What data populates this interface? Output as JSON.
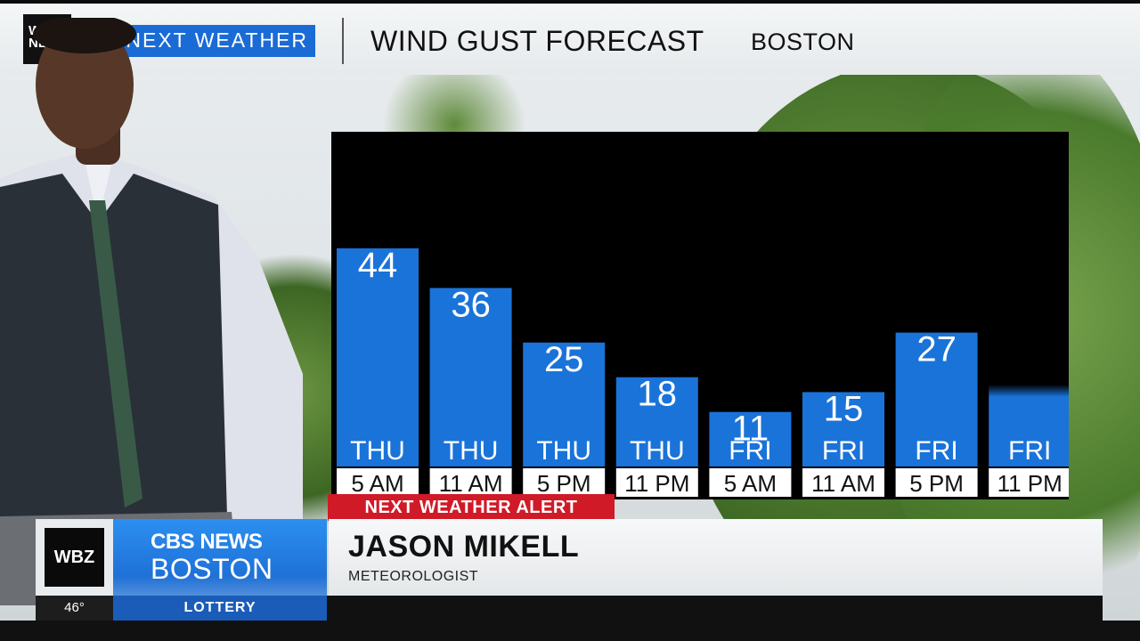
{
  "header": {
    "logo_text": "WBZ NEXT",
    "brand_text": "NEXT WEATHER",
    "title": "WIND GUST FORECAST",
    "city": "BOSTON"
  },
  "chart_data": {
    "type": "bar",
    "title": "WIND GUST FORECAST",
    "categories": [
      {
        "day": "THU",
        "time": "5 AM"
      },
      {
        "day": "THU",
        "time": "11 AM"
      },
      {
        "day": "THU",
        "time": "5 PM"
      },
      {
        "day": "THU",
        "time": "11 PM"
      },
      {
        "day": "FRI",
        "time": "5 AM"
      },
      {
        "day": "FRI",
        "time": "11 AM"
      },
      {
        "day": "FRI",
        "time": "5 PM"
      },
      {
        "day": "FRI",
        "time": "11 PM"
      }
    ],
    "values": [
      44,
      36,
      25,
      18,
      11,
      15,
      27,
      null
    ],
    "value_labels": [
      "44",
      "36",
      "25",
      "18",
      "11",
      "15",
      "27",
      ""
    ],
    "bar_color": "#1a73d9",
    "panel_color": "#000000",
    "xlabel": "",
    "ylabel": "",
    "grid": false
  },
  "alert": {
    "label": "NEXT WEATHER ALERT",
    "color": "#d01a27"
  },
  "lower_third": {
    "station_box": "WBZ",
    "network_line1": "CBS NEWS",
    "network_line2": "BOSTON",
    "name": "JASON MIKELL",
    "role": "METEOROLOGIST"
  },
  "ticker": {
    "temperature": "46°",
    "label": "LOTTERY"
  }
}
